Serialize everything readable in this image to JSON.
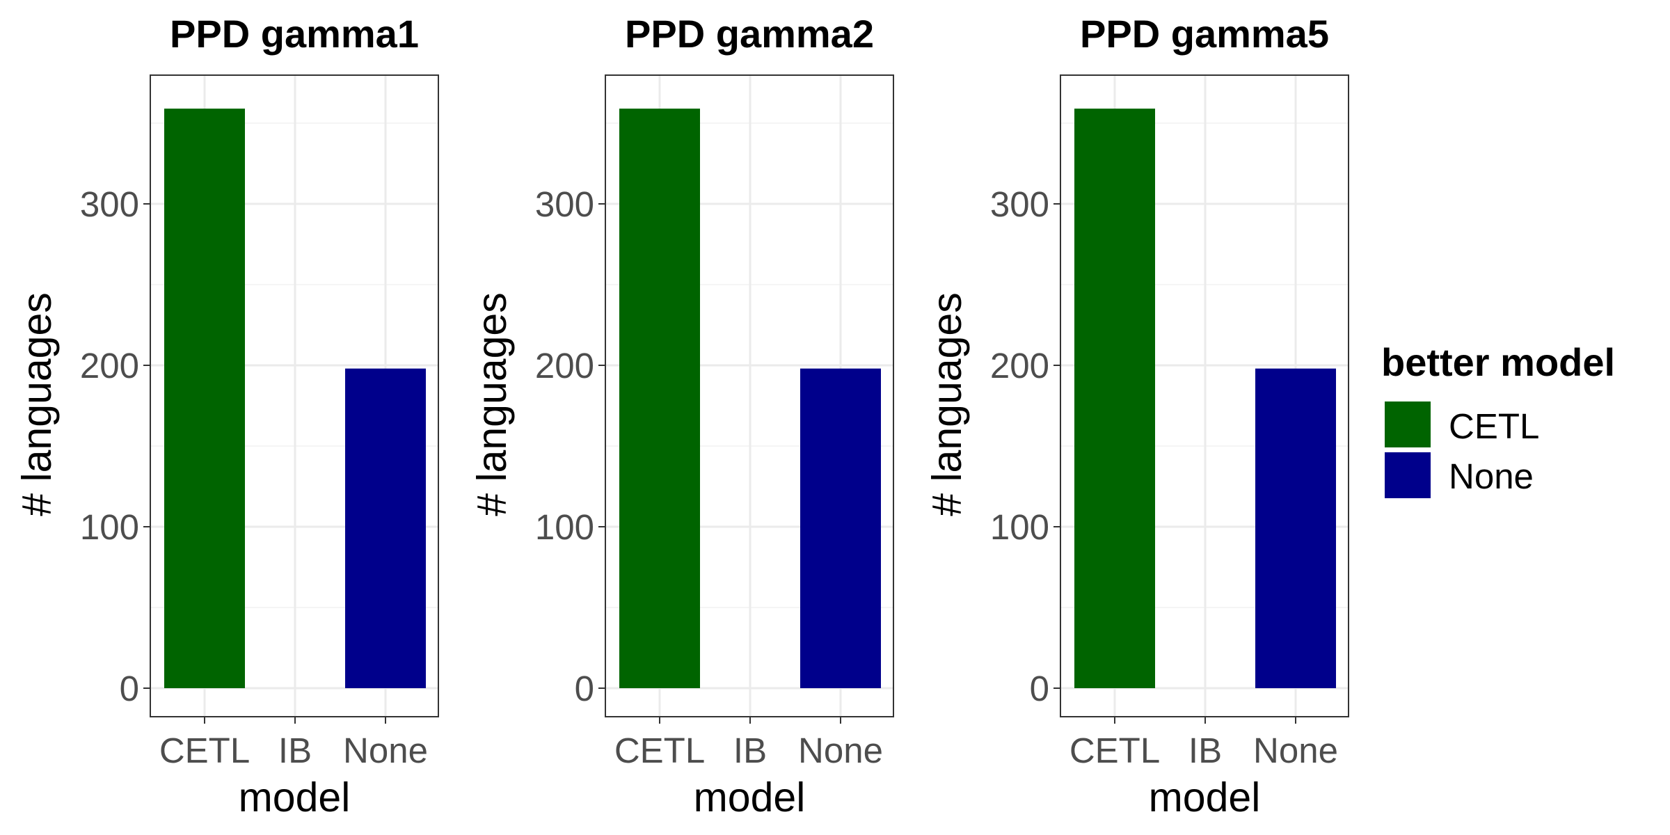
{
  "chart_data": [
    {
      "type": "bar",
      "title": "PPD gamma1",
      "xlabel": "model",
      "ylabel": "# languages",
      "categories": [
        "CETL",
        "IB",
        "None"
      ],
      "values": [
        359,
        0,
        198
      ],
      "bar_fill": [
        "CETL",
        null,
        "None"
      ],
      "ylim": [
        0,
        375
      ],
      "yticks": [
        0,
        100,
        200,
        300
      ],
      "grid": true
    },
    {
      "type": "bar",
      "title": "PPD gamma2",
      "xlabel": "model",
      "ylabel": "# languages",
      "categories": [
        "CETL",
        "IB",
        "None"
      ],
      "values": [
        359,
        0,
        198
      ],
      "bar_fill": [
        "CETL",
        null,
        "None"
      ],
      "ylim": [
        0,
        375
      ],
      "yticks": [
        0,
        100,
        200,
        300
      ],
      "grid": true
    },
    {
      "type": "bar",
      "title": "PPD gamma5",
      "xlabel": "model",
      "ylabel": "# languages",
      "categories": [
        "CETL",
        "IB",
        "None"
      ],
      "values": [
        359,
        0,
        198
      ],
      "bar_fill": [
        "CETL",
        null,
        "None"
      ],
      "ylim": [
        0,
        375
      ],
      "yticks": [
        0,
        100,
        200,
        300
      ],
      "grid": true
    }
  ],
  "legend": {
    "title": "better model",
    "placement": "right",
    "items": [
      {
        "label": "CETL",
        "color": "#006400"
      },
      {
        "label": "None",
        "color": "#00008B"
      }
    ]
  }
}
